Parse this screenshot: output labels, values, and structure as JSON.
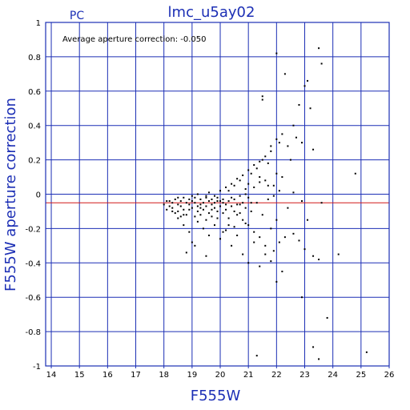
{
  "panel_label": "PC",
  "annotation": "Average aperture correction: -0.050",
  "colors": {
    "axis_blue": "#1c2fb5",
    "grid_blue": "#1c2fb5",
    "mean_line": "#d01818",
    "points": "#000000"
  },
  "chart_data": {
    "type": "scatter",
    "title": "lmc_u5ay02",
    "xlabel": "F555W",
    "ylabel": "F555W aperture correction",
    "xlim": [
      13.8,
      26.0
    ],
    "ylim": [
      -1.0,
      1.0
    ],
    "xticks": [
      14,
      15,
      16,
      17,
      18,
      19,
      20,
      21,
      22,
      23,
      24,
      25,
      26
    ],
    "yticks": [
      -1,
      -0.8,
      -0.6,
      -0.4,
      -0.2,
      0,
      0.2,
      0.4,
      0.6,
      0.8,
      1
    ],
    "ytick_labels": [
      "-1",
      "-0.8",
      "-0.6",
      "-0.4",
      "-0.2",
      "0",
      "0.2",
      "0.4",
      "0.6",
      "0.8",
      "1"
    ],
    "grid": true,
    "mean_value": -0.05,
    "points": [
      [
        18.0,
        -0.06
      ],
      [
        18.2,
        -0.04
      ],
      [
        18.3,
        -0.05
      ],
      [
        18.3,
        -0.08
      ],
      [
        18.4,
        -0.03
      ],
      [
        18.5,
        -0.06
      ],
      [
        18.5,
        -0.1
      ],
      [
        18.6,
        -0.04
      ],
      [
        18.6,
        -0.07
      ],
      [
        18.7,
        -0.02
      ],
      [
        18.7,
        -0.09
      ],
      [
        18.8,
        -0.05
      ],
      [
        18.8,
        -0.12
      ],
      [
        18.9,
        -0.03
      ],
      [
        18.9,
        -0.06
      ],
      [
        19.0,
        -0.04
      ],
      [
        19.0,
        -0.08
      ],
      [
        19.1,
        -0.02
      ],
      [
        19.1,
        -0.05
      ],
      [
        19.2,
        -0.07
      ],
      [
        19.2,
        -0.1
      ],
      [
        19.3,
        -0.03
      ],
      [
        19.3,
        -0.06
      ],
      [
        19.4,
        -0.05
      ],
      [
        19.4,
        -0.09
      ],
      [
        19.5,
        -0.02
      ],
      [
        19.5,
        -0.07
      ],
      [
        19.6,
        -0.04
      ],
      [
        19.6,
        -0.11
      ],
      [
        19.7,
        -0.03
      ],
      [
        19.7,
        -0.06
      ],
      [
        19.8,
        -0.05
      ],
      [
        19.8,
        -0.08
      ],
      [
        19.9,
        -0.02
      ],
      [
        19.9,
        -0.1
      ],
      [
        20.0,
        -0.04
      ],
      [
        20.0,
        -0.07
      ],
      [
        20.1,
        -0.03
      ],
      [
        20.1,
        -0.05
      ],
      [
        20.2,
        -0.06
      ],
      [
        20.2,
        -0.09
      ],
      [
        20.3,
        0.02
      ],
      [
        20.3,
        -0.04
      ],
      [
        20.4,
        -0.02
      ],
      [
        20.4,
        -0.07
      ],
      [
        20.5,
        0.05
      ],
      [
        20.5,
        -0.03
      ],
      [
        20.6,
        -0.06
      ],
      [
        20.6,
        -0.12
      ],
      [
        20.7,
        0.08
      ],
      [
        20.7,
        -0.01
      ],
      [
        20.8,
        -0.05
      ],
      [
        20.8,
        -0.15
      ],
      [
        20.9,
        0.03
      ],
      [
        20.9,
        -0.08
      ],
      [
        21.0,
        0.06
      ],
      [
        21.0,
        -0.02
      ],
      [
        21.0,
        -0.18
      ],
      [
        21.1,
        0.12
      ],
      [
        21.1,
        -0.1
      ],
      [
        21.2,
        0.04
      ],
      [
        21.2,
        -0.22
      ],
      [
        21.3,
        0.15
      ],
      [
        21.3,
        -0.05
      ],
      [
        21.4,
        0.1
      ],
      [
        21.4,
        -0.25
      ],
      [
        21.5,
        0.2
      ],
      [
        21.5,
        -0.12
      ],
      [
        21.6,
        0.08
      ],
      [
        21.6,
        -0.3
      ],
      [
        21.7,
        0.18
      ],
      [
        21.7,
        -0.03
      ],
      [
        21.8,
        0.25
      ],
      [
        21.8,
        -0.2
      ],
      [
        21.9,
        0.05
      ],
      [
        21.9,
        -0.33
      ],
      [
        22.0,
        0.12
      ],
      [
        22.0,
        -0.15
      ],
      [
        22.1,
        0.3
      ],
      [
        22.1,
        -0.28
      ],
      [
        18.5,
        -0.14
      ],
      [
        18.7,
        -0.18
      ],
      [
        18.9,
        -0.22
      ],
      [
        19.0,
        -0.28
      ],
      [
        19.2,
        -0.16
      ],
      [
        19.4,
        -0.2
      ],
      [
        19.6,
        -0.24
      ],
      [
        19.8,
        -0.18
      ],
      [
        20.0,
        -0.26
      ],
      [
        20.2,
        -0.21
      ],
      [
        20.4,
        -0.3
      ],
      [
        20.6,
        -0.24
      ],
      [
        20.8,
        -0.35
      ],
      [
        21.0,
        -0.4
      ],
      [
        21.2,
        -0.28
      ],
      [
        18.8,
        -0.34
      ],
      [
        19.1,
        -0.3
      ],
      [
        19.5,
        -0.36
      ],
      [
        20.1,
        -0.22
      ],
      [
        20.3,
        -0.14
      ],
      [
        20.5,
        -0.19
      ],
      [
        20.7,
        -0.11
      ],
      [
        20.9,
        -0.17
      ],
      [
        19.3,
        -0.12
      ],
      [
        19.5,
        -0.15
      ],
      [
        19.7,
        -0.13
      ],
      [
        19.9,
        -0.14
      ],
      [
        18.4,
        -0.11
      ],
      [
        18.6,
        -0.13
      ],
      [
        18.2,
        -0.07
      ],
      [
        18.1,
        -0.09
      ],
      [
        19.0,
        -0.01
      ],
      [
        19.2,
        0.0
      ],
      [
        19.6,
        0.01
      ],
      [
        19.8,
        -0.01
      ],
      [
        20.0,
        0.02
      ],
      [
        20.2,
        0.04
      ],
      [
        20.4,
        0.06
      ],
      [
        20.6,
        0.09
      ],
      [
        20.8,
        0.11
      ],
      [
        21.0,
        0.14
      ],
      [
        21.2,
        0.17
      ],
      [
        21.4,
        0.19
      ],
      [
        21.6,
        0.22
      ],
      [
        21.8,
        0.28
      ],
      [
        22.0,
        0.32
      ],
      [
        22.2,
        0.35
      ],
      [
        21.5,
        0.55
      ],
      [
        21.5,
        0.57
      ],
      [
        22.0,
        0.82
      ],
      [
        22.3,
        0.7
      ],
      [
        22.8,
        0.52
      ],
      [
        23.0,
        0.63
      ],
      [
        23.1,
        0.66
      ],
      [
        23.2,
        0.5
      ],
      [
        23.5,
        0.85
      ],
      [
        23.6,
        0.76
      ],
      [
        22.6,
        0.4
      ],
      [
        22.7,
        0.33
      ],
      [
        23.3,
        0.26
      ],
      [
        22.9,
        0.3
      ],
      [
        22.4,
        0.28
      ],
      [
        22.5,
        0.2
      ],
      [
        23.0,
        -0.32
      ],
      [
        23.3,
        -0.36
      ],
      [
        23.5,
        -0.38
      ],
      [
        24.2,
        -0.35
      ],
      [
        22.6,
        -0.23
      ],
      [
        22.8,
        -0.27
      ],
      [
        23.1,
        -0.15
      ],
      [
        23.6,
        -0.05
      ],
      [
        24.8,
        0.12
      ],
      [
        22.0,
        -0.51
      ],
      [
        21.8,
        -0.39
      ],
      [
        22.2,
        -0.45
      ],
      [
        21.4,
        -0.42
      ],
      [
        21.6,
        -0.35
      ],
      [
        22.3,
        -0.25
      ],
      [
        22.9,
        -0.6
      ],
      [
        23.8,
        -0.72
      ],
      [
        23.3,
        -0.89
      ],
      [
        23.5,
        -0.96
      ],
      [
        25.2,
        -0.92
      ],
      [
        21.3,
        -0.94
      ],
      [
        21.9,
        -0.01
      ],
      [
        22.1,
        0.02
      ],
      [
        22.4,
        -0.08
      ],
      [
        22.6,
        0.01
      ],
      [
        22.9,
        -0.04
      ],
      [
        22.2,
        0.1
      ],
      [
        21.7,
        0.05
      ],
      [
        21.4,
        0.07
      ],
      [
        21.1,
        -0.05
      ],
      [
        20.9,
        0.0
      ],
      [
        20.7,
        -0.06
      ],
      [
        20.5,
        -0.1
      ],
      [
        20.3,
        -0.18
      ],
      [
        20.1,
        -0.11
      ],
      [
        19.9,
        -0.04
      ],
      [
        19.7,
        -0.09
      ],
      [
        19.5,
        -0.01
      ],
      [
        19.3,
        -0.08
      ],
      [
        19.1,
        -0.13
      ],
      [
        18.9,
        -0.09
      ],
      [
        18.7,
        -0.12
      ],
      [
        18.5,
        -0.02
      ],
      [
        18.3,
        -0.1
      ],
      [
        18.1,
        -0.04
      ]
    ]
  }
}
